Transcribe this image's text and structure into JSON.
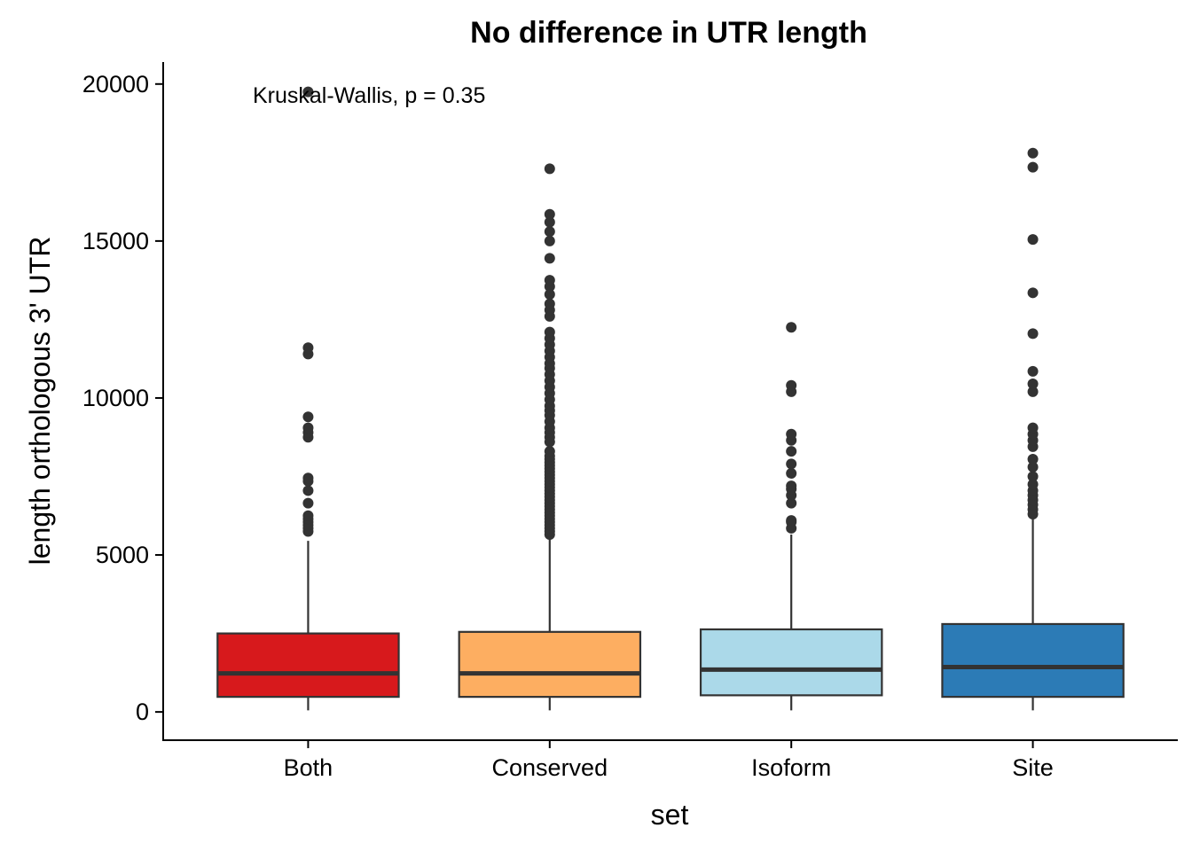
{
  "chart_data": {
    "type": "boxplot",
    "title": "No difference in UTR length",
    "xlabel": "set",
    "ylabel": "length orthologous 3' UTR",
    "annotation": "Kruskal-Wallis, p = 0.35",
    "categories": [
      "Both",
      "Conserved",
      "Isoform",
      "Site"
    ],
    "ylim": [
      -900,
      20700
    ],
    "yticks": [
      0,
      5000,
      10000,
      15000,
      20000
    ],
    "ytick_labels": [
      "0",
      "5000",
      "10000",
      "15000",
      "20000"
    ],
    "grid": false,
    "legend": "none",
    "boxes": [
      {
        "name": "Both",
        "color": "#d7191c",
        "whisker_low": 50,
        "q1": 480,
        "median": 1230,
        "q3": 2500,
        "whisker_high": 5450,
        "outliers": [
          5750,
          5850,
          5950,
          6050,
          6150,
          6250,
          6650,
          7050,
          7350,
          7450,
          8750,
          8900,
          9050,
          9400,
          11400,
          11600,
          19750
        ]
      },
      {
        "name": "Conserved",
        "color": "#fdae61",
        "whisker_low": 50,
        "q1": 480,
        "median": 1230,
        "q3": 2550,
        "whisker_high": 5600,
        "outliers": [
          5650,
          5750,
          5850,
          5950,
          6050,
          6150,
          6250,
          6350,
          6450,
          6550,
          6650,
          6750,
          6850,
          6950,
          7050,
          7150,
          7250,
          7350,
          7450,
          7550,
          7650,
          7750,
          7850,
          7950,
          8050,
          8150,
          8300,
          8600,
          8750,
          8900,
          9050,
          9250,
          9450,
          9600,
          9750,
          9950,
          10150,
          10350,
          10550,
          10750,
          10950,
          11100,
          11300,
          11500,
          11700,
          11900,
          12100,
          12600,
          12800,
          13000,
          13300,
          13550,
          13750,
          14450,
          15000,
          15300,
          15600,
          15850,
          17300
        ]
      },
      {
        "name": "Isoform",
        "color": "#abd9e9",
        "whisker_low": 50,
        "q1": 530,
        "median": 1350,
        "q3": 2630,
        "whisker_high": 5650,
        "outliers": [
          5850,
          6050,
          6100,
          6650,
          6900,
          7100,
          7200,
          7600,
          7900,
          8300,
          8650,
          8850,
          10200,
          10400,
          12250
        ]
      },
      {
        "name": "Site",
        "color": "#2c7bb6",
        "whisker_low": 50,
        "q1": 480,
        "median": 1430,
        "q3": 2800,
        "whisker_high": 6200,
        "outliers": [
          6300,
          6450,
          6600,
          6750,
          6900,
          7050,
          7250,
          7500,
          7800,
          8050,
          8450,
          8650,
          8850,
          9050,
          10200,
          10450,
          10850,
          12050,
          13350,
          15050,
          17350,
          17800
        ]
      }
    ]
  }
}
